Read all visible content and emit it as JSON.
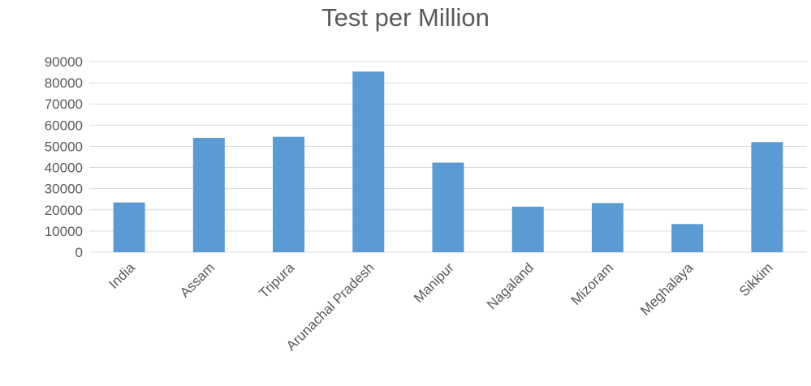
{
  "chart_data": {
    "type": "bar",
    "title": "Test per Million",
    "categories": [
      "India",
      "Assam",
      "Tripura",
      "Arunachal Pradesh",
      "Manipur",
      "Nagaland",
      "Mizoram",
      "Meghalaya",
      "Sikkim"
    ],
    "values": [
      23500,
      54000,
      54500,
      85300,
      42300,
      21500,
      23200,
      13300,
      52000
    ],
    "y_ticks": [
      "0",
      "10000",
      "20000",
      "30000",
      "40000",
      "50000",
      "60000",
      "70000",
      "80000",
      "90000"
    ],
    "ylim": [
      0,
      90000
    ],
    "grid": true,
    "legend": "none",
    "bar_color": "#5B9BD5",
    "grid_color": "#D9D9D9",
    "text_color": "#595959"
  }
}
